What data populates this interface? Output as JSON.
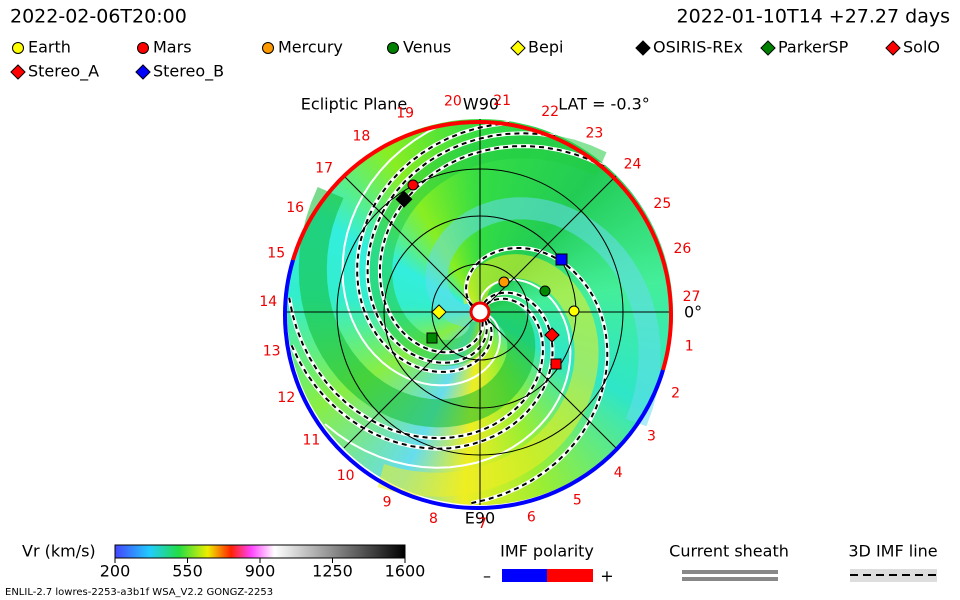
{
  "header": {
    "time": "2022-02-06T20:00",
    "reference": "2022-01-10T14 +27.27 days"
  },
  "legend": [
    {
      "name": "Earth",
      "color": "#ffff00",
      "shape": "circle"
    },
    {
      "name": "Mars",
      "color": "#ff0000",
      "shape": "circle"
    },
    {
      "name": "Mercury",
      "color": "#ff9900",
      "shape": "circle"
    },
    {
      "name": "Venus",
      "color": "#008000",
      "shape": "circle"
    },
    {
      "name": "Bepi",
      "color": "#ffff00",
      "shape": "diamond"
    },
    {
      "name": "OSIRIS-REx",
      "color": "#000000",
      "shape": "diamond"
    },
    {
      "name": "ParkerSP",
      "color": "#008000",
      "shape": "diamond"
    },
    {
      "name": "SolO",
      "color": "#ff0000",
      "shape": "diamond"
    },
    {
      "name": "Stereo_A",
      "color": "#ff0000",
      "shape": "diamond"
    },
    {
      "name": "Stereo_B",
      "color": "#0000ff",
      "shape": "diamond"
    }
  ],
  "plot": {
    "title": "Ecliptic Plane",
    "top_label": "W90",
    "bottom_label": "E90",
    "lat_label": "LAT = -0.3°",
    "zero_label": "0°",
    "sector_labels": [
      1,
      2,
      3,
      4,
      5,
      6,
      7,
      8,
      9,
      10,
      11,
      12,
      13,
      14,
      15,
      16,
      17,
      18,
      19,
      20,
      21,
      22,
      23,
      24,
      25,
      26,
      27
    ]
  },
  "colorbar": {
    "label": "Vr (km/s)",
    "range": [
      200,
      1600
    ],
    "ticks": [
      200,
      550,
      900,
      1250,
      1600
    ]
  },
  "polarity": {
    "title": "IMF polarity",
    "minus": "–",
    "plus": "+"
  },
  "sheath": "Current sheath",
  "imf_line": "3D IMF line",
  "footer": "ENLIL-2.7 lowres-2253-a3b1f WSA_V2.2 GONGZ-2253"
}
